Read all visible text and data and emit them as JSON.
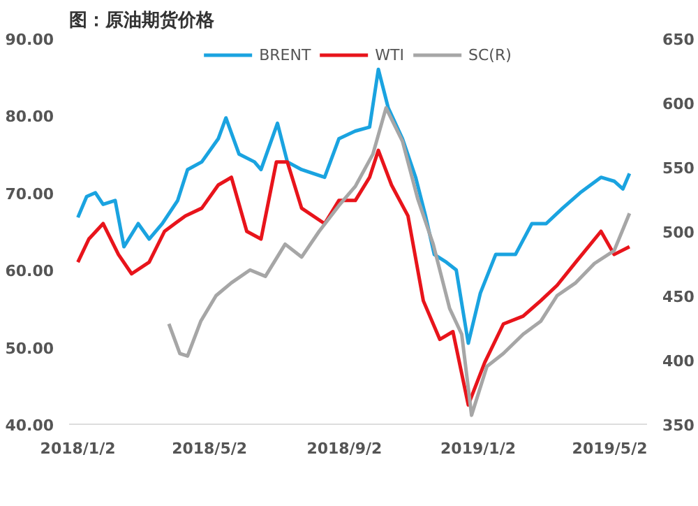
{
  "chart_data": {
    "type": "line",
    "title": "图：原油期货价格",
    "legend": "top",
    "grid": false,
    "xlim": [
      "2017-12-25",
      "2019-06-05"
    ],
    "xticks": [
      {
        "value": "2018-01-02",
        "label": "2018/1/2"
      },
      {
        "value": "2018-05-02",
        "label": "2018/5/2"
      },
      {
        "value": "2018-09-02",
        "label": "2018/9/2"
      },
      {
        "value": "2019-01-02",
        "label": "2019/1/2"
      },
      {
        "value": "2019-05-02",
        "label": "2019/5/2"
      }
    ],
    "ylim": [
      40,
      90
    ],
    "yticks": [
      {
        "value": 40,
        "label": "40.00"
      },
      {
        "value": 50,
        "label": "50.00"
      },
      {
        "value": 60,
        "label": "60.00"
      },
      {
        "value": 70,
        "label": "70.00"
      },
      {
        "value": 80,
        "label": "80.00"
      },
      {
        "value": 90,
        "label": "90.00"
      }
    ],
    "y2lim": [
      350,
      650
    ],
    "y2ticks": [
      350,
      400,
      450,
      500,
      550,
      600,
      650
    ],
    "series": [
      {
        "name": "BRENT",
        "color": "#1aa3e0",
        "x": [
          "2018-01-02",
          "2018-01-10",
          "2018-01-18",
          "2018-01-25",
          "2018-02-05",
          "2018-02-13",
          "2018-02-26",
          "2018-03-08",
          "2018-03-20",
          "2018-04-03",
          "2018-04-12",
          "2018-04-25",
          "2018-05-10",
          "2018-05-17",
          "2018-05-29",
          "2018-06-12",
          "2018-06-18",
          "2018-07-03",
          "2018-07-12",
          "2018-07-25",
          "2018-08-15",
          "2018-08-28",
          "2018-09-12",
          "2018-09-25",
          "2018-10-03",
          "2018-10-12",
          "2018-10-25",
          "2018-11-06",
          "2018-11-15",
          "2018-11-23",
          "2018-12-04",
          "2018-12-13",
          "2018-12-24",
          "2019-01-04",
          "2019-01-18",
          "2019-02-05",
          "2019-02-20",
          "2019-03-05",
          "2019-03-20",
          "2019-04-05",
          "2019-04-24",
          "2019-05-06",
          "2019-05-14",
          "2019-05-20"
        ],
        "values": [
          66.8,
          69.5,
          70,
          68.5,
          69,
          63,
          66,
          64,
          66,
          69,
          73,
          74,
          77,
          79.7,
          75,
          74,
          73,
          79,
          74,
          73,
          72,
          77,
          78,
          78.5,
          86,
          81,
          77,
          72,
          67,
          62,
          61,
          60,
          50.5,
          57,
          62,
          62,
          66,
          66,
          68,
          70,
          72,
          71.5,
          70.5,
          72.5
        ]
      },
      {
        "name": "WTI",
        "color": "#e8141b",
        "x": [
          "2018-01-02",
          "2018-01-12",
          "2018-01-25",
          "2018-02-08",
          "2018-02-20",
          "2018-03-08",
          "2018-03-22",
          "2018-04-10",
          "2018-04-25",
          "2018-05-10",
          "2018-05-22",
          "2018-06-05",
          "2018-06-18",
          "2018-07-02",
          "2018-07-12",
          "2018-07-25",
          "2018-08-15",
          "2018-08-28",
          "2018-09-12",
          "2018-09-25",
          "2018-10-03",
          "2018-10-15",
          "2018-10-30",
          "2018-11-13",
          "2018-11-28",
          "2018-12-10",
          "2018-12-24",
          "2019-01-08",
          "2019-01-25",
          "2019-02-12",
          "2019-02-28",
          "2019-03-15",
          "2019-04-01",
          "2019-04-24",
          "2019-05-06",
          "2019-05-20"
        ],
        "values": [
          61,
          64,
          66,
          62,
          59.5,
          61,
          65,
          67,
          68,
          71,
          72,
          65,
          64,
          74,
          74,
          68,
          66,
          69,
          69,
          72,
          75.5,
          71,
          67,
          56,
          51,
          52,
          42.5,
          48,
          53,
          54,
          56,
          58,
          61,
          65,
          62,
          63
        ]
      },
      {
        "name": "SC(R)",
        "color": "#a6a6a6",
        "axis": "y2",
        "x": [
          "2018-03-26",
          "2018-04-05",
          "2018-04-12",
          "2018-04-24",
          "2018-05-08",
          "2018-05-22",
          "2018-06-08",
          "2018-06-22",
          "2018-07-10",
          "2018-07-25",
          "2018-08-10",
          "2018-08-28",
          "2018-09-12",
          "2018-09-28",
          "2018-10-10",
          "2018-10-25",
          "2018-11-08",
          "2018-11-22",
          "2018-12-07",
          "2018-12-18",
          "2018-12-27",
          "2019-01-10",
          "2019-01-25",
          "2019-02-12",
          "2019-02-28",
          "2019-03-15",
          "2019-04-01",
          "2019-04-18",
          "2019-05-06",
          "2019-05-20"
        ],
        "values": [
          428,
          405,
          403,
          430,
          450,
          460,
          470,
          465,
          490,
          480,
          500,
          520,
          535,
          560,
          596,
          570,
          525,
          490,
          440,
          420,
          357,
          395,
          405,
          420,
          430,
          450,
          460,
          475,
          485,
          514
        ]
      }
    ]
  }
}
